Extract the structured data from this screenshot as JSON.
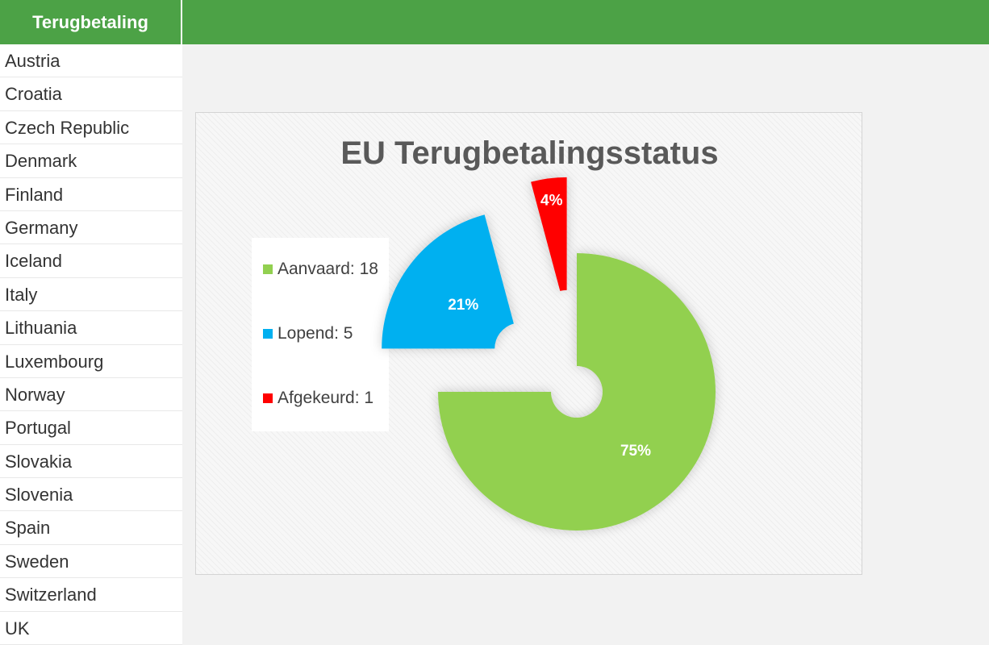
{
  "header": {
    "title": "Terugbetaling"
  },
  "sidebar": {
    "items": [
      "Austria",
      "Croatia",
      "Czech Republic",
      "Denmark",
      "Finland",
      "Germany",
      "Iceland",
      "Italy",
      "Lithuania",
      "Luxembourg",
      "Norway",
      "Portugal",
      "Slovakia",
      "Slovenia",
      "Spain",
      "Sweden",
      "Switzerland",
      "UK"
    ]
  },
  "colors": {
    "header": "#4ca246",
    "green": "#92d050",
    "blue": "#00b0f0",
    "red": "#ff0000"
  },
  "chart_data": {
    "type": "pie",
    "title": "EU Terugbetalingsstatus",
    "categories": [
      "Aanvaard",
      "Lopend",
      "Afgekeurd"
    ],
    "values": [
      18,
      5,
      1
    ],
    "percent_labels": [
      "75%",
      "21%",
      "4%"
    ],
    "colors": [
      "#92d050",
      "#00b0f0",
      "#ff0000"
    ],
    "legend_entries": [
      "Aanvaard: 18",
      "Lopend: 5",
      "Afgekeurd: 1"
    ],
    "legend_position": "left",
    "exploded": true
  }
}
